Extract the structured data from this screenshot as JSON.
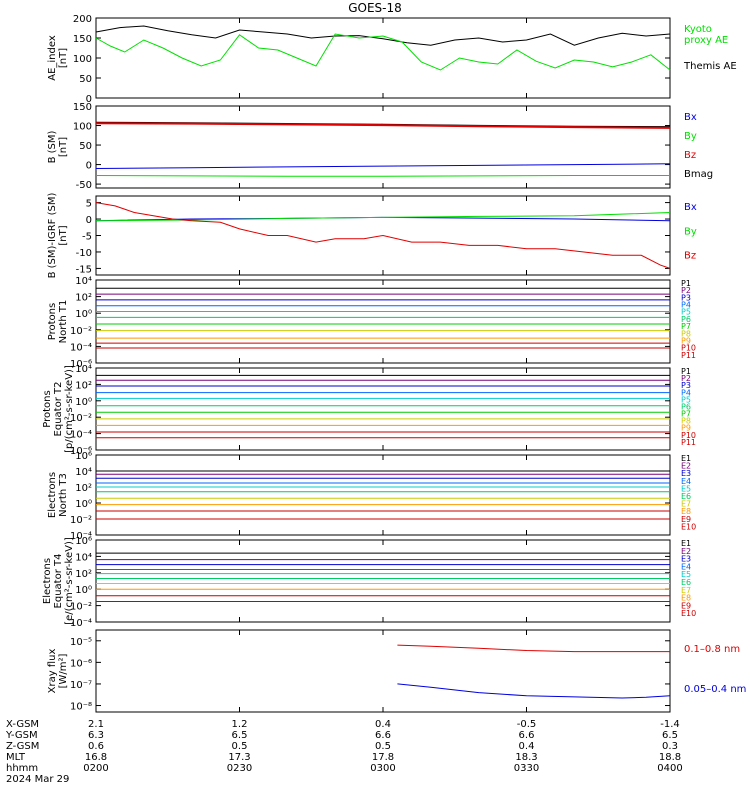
{
  "title": "GOES-18",
  "colors": {
    "black": "#000000",
    "blue": "#0000e0",
    "green": "#00e000",
    "red": "#e00000",
    "P": [
      "#000000",
      "#7a007a",
      "#0000cc",
      "#0066ff",
      "#00cccc",
      "#00cc66",
      "#00cc00",
      "#cccc00",
      "#ff9900",
      "#cc0000",
      "#cc0000",
      "#cc0000"
    ],
    "E": [
      "#000000",
      "#7a007a",
      "#0000cc",
      "#0066ff",
      "#00cccc",
      "#00cc66",
      "#cccc00",
      "#ff9900",
      "#cc0000",
      "#cc0000"
    ]
  },
  "chart_data": [
    {
      "type": "line",
      "ylabel": "AE_index\n[nT]",
      "ylim": [
        0,
        200
      ],
      "yticks": [
        "0",
        "50",
        "100",
        "150",
        "200"
      ],
      "log": false,
      "xlim": [
        0,
        120
      ],
      "legend": [
        {
          "label": "Kyoto\nproxy AE",
          "color": "#00e000"
        },
        {
          "label": "Themis AE",
          "color": "#000000"
        }
      ],
      "series": [
        {
          "name": "Themis AE",
          "color": "#000000",
          "x": [
            0,
            5,
            10,
            15,
            20,
            25,
            30,
            35,
            40,
            45,
            50,
            55,
            60,
            65,
            70,
            75,
            80,
            85,
            90,
            95,
            100,
            105,
            110,
            115,
            120
          ],
          "y": [
            165,
            176,
            180,
            168,
            158,
            150,
            170,
            165,
            160,
            150,
            155,
            156,
            148,
            138,
            132,
            145,
            150,
            140,
            145,
            160,
            132,
            150,
            162,
            155,
            160
          ]
        },
        {
          "name": "Kyoto proxy AE",
          "color": "#00e000",
          "x": [
            0,
            3,
            6,
            10,
            14,
            18,
            22,
            26,
            30,
            34,
            38,
            42,
            46,
            50,
            55,
            60,
            64,
            68,
            72,
            76,
            80,
            84,
            88,
            92,
            96,
            100,
            104,
            108,
            112,
            116,
            120
          ],
          "y": [
            150,
            130,
            115,
            145,
            125,
            100,
            80,
            95,
            158,
            125,
            120,
            100,
            80,
            160,
            150,
            155,
            140,
            90,
            70,
            100,
            90,
            85,
            120,
            92,
            75,
            95,
            90,
            78,
            90,
            108,
            70
          ]
        }
      ]
    },
    {
      "type": "line",
      "ylabel": "B (SM)\n[nT]",
      "ylim": [
        -60,
        150
      ],
      "yticks": [
        "-50",
        "0",
        "50",
        "100",
        "150"
      ],
      "log": false,
      "xlim": [
        0,
        120
      ],
      "legend": [
        {
          "label": "Bx",
          "color": "#0000e0"
        },
        {
          "label": "By",
          "color": "#00e000"
        },
        {
          "label": "Bz",
          "color": "#e00000"
        },
        {
          "label": "Bmag",
          "color": "#000000"
        }
      ],
      "series": [
        {
          "name": "Bmag",
          "color": "#000000",
          "x": [
            0,
            20,
            40,
            60,
            80,
            100,
            120
          ],
          "y": [
            107,
            106,
            104,
            102,
            99,
            97,
            96
          ]
        },
        {
          "name": "Bz",
          "color": "#e00000",
          "x": [
            0,
            20,
            40,
            60,
            80,
            100,
            120
          ],
          "y": [
            106,
            105,
            103,
            101,
            98,
            96,
            94
          ]
        },
        {
          "name": "Bx",
          "color": "#0000e0",
          "x": [
            0,
            20,
            40,
            60,
            80,
            100,
            120
          ],
          "y": [
            -10,
            -8,
            -6,
            -4,
            -2,
            0,
            2
          ]
        },
        {
          "name": "By",
          "color": "#00e000",
          "x": [
            0,
            20,
            40,
            60,
            80,
            100,
            120
          ],
          "y": [
            -28,
            -29,
            -30,
            -30,
            -29,
            -28,
            -28
          ]
        }
      ]
    },
    {
      "type": "line",
      "ylabel": "B (SM)-IGRF (SM)\n[nT]",
      "ylim": [
        -17,
        7
      ],
      "yticks": [
        "-15",
        "-10",
        "-5",
        "0",
        "5"
      ],
      "log": false,
      "xlim": [
        0,
        120
      ],
      "legend": [
        {
          "label": "Bx",
          "color": "#0000e0"
        },
        {
          "label": "By",
          "color": "#00e000"
        },
        {
          "label": "Bz",
          "color": "#e00000"
        }
      ],
      "series": [
        {
          "name": "Bx",
          "color": "#0000e0",
          "x": [
            0,
            20,
            40,
            60,
            80,
            100,
            120
          ],
          "y": [
            -0.5,
            0,
            0.2,
            0.5,
            0.3,
            0,
            -0.5
          ]
        },
        {
          "name": "By",
          "color": "#00e000",
          "x": [
            0,
            20,
            40,
            60,
            80,
            100,
            120
          ],
          "y": [
            -0.5,
            -0.3,
            0.2,
            0.5,
            0.8,
            1.0,
            2.0
          ]
        },
        {
          "name": "Bz",
          "color": "#e00000",
          "x": [
            0,
            4,
            8,
            12,
            16,
            20,
            26,
            30,
            36,
            40,
            46,
            50,
            56,
            60,
            66,
            72,
            78,
            84,
            90,
            96,
            102,
            108,
            114,
            118,
            120
          ],
          "y": [
            5,
            4,
            2,
            1,
            0,
            -0.5,
            -1,
            -3,
            -5,
            -5,
            -7,
            -6,
            -6,
            -5,
            -7,
            -7,
            -8,
            -8,
            -9,
            -9,
            -10,
            -11,
            -11,
            -14,
            -15
          ]
        }
      ]
    },
    {
      "type": "line",
      "ylabel": "Protons\nNorth T1",
      "ylim": [
        -6,
        4
      ],
      "yticks": [
        "10⁻⁶",
        "10⁻⁴",
        "10⁻²",
        "10⁰",
        "10²",
        "10⁴"
      ],
      "log": true,
      "xlim": [
        0,
        120
      ],
      "legend_labels": [
        "P1",
        "P2",
        "P3",
        "P4",
        "P5",
        "P6",
        "P7",
        "P8",
        "P9",
        "P10",
        "P11"
      ],
      "series_log10": [
        3.0,
        2.3,
        1.6,
        0.9,
        0.2,
        -0.5,
        -1.3,
        -2.1,
        -3.0,
        -3.6,
        -4.2
      ]
    },
    {
      "type": "line",
      "ylabel": "Protons\nEquator T2\n[p/(cm²-s-sr-keV)]",
      "ylim": [
        -6,
        4
      ],
      "yticks": [
        "10⁻⁶",
        "10⁻⁴",
        "10⁻²",
        "10⁰",
        "10²",
        "10⁴"
      ],
      "log": true,
      "xlim": [
        0,
        120
      ],
      "legend_labels": [
        "P1",
        "P2",
        "P3",
        "P4",
        "P5",
        "P6",
        "P7",
        "P8",
        "P9",
        "P10",
        "P11"
      ],
      "series_log10": [
        3.1,
        2.5,
        1.8,
        1.0,
        0.3,
        -0.6,
        -1.4,
        -2.2,
        -3.0,
        -3.8,
        -4.5
      ]
    },
    {
      "type": "line",
      "ylabel": "Electrons\nNorth T3",
      "ylim": [
        -4,
        6
      ],
      "yticks": [
        "10⁻⁴",
        "10⁻²",
        "10⁰",
        "10²",
        "10⁴",
        "10⁶"
      ],
      "log": true,
      "xlim": [
        0,
        120
      ],
      "legend_labels": [
        "E1",
        "E2",
        "E3",
        "E4",
        "E5",
        "E6",
        "E7",
        "E8",
        "E9",
        "E10"
      ],
      "series_log10": [
        4.0,
        3.6,
        3.1,
        2.5,
        2.0,
        1.4,
        0.6,
        -0.2,
        -1.0,
        -2.0
      ]
    },
    {
      "type": "line",
      "ylabel": "Electrons\nEquator T4\n[e/(cm²-s-sr-keV)]",
      "ylim": [
        -4,
        6
      ],
      "yticks": [
        "10⁻⁴",
        "10⁻²",
        "10⁰",
        "10²",
        "10⁴",
        "10⁶"
      ],
      "log": true,
      "xlim": [
        0,
        120
      ],
      "legend_labels": [
        "E1",
        "E2",
        "E3",
        "E4",
        "E5",
        "E6",
        "E7",
        "E8",
        "E9",
        "E10"
      ],
      "series_log10": [
        4.4,
        3.6,
        3.0,
        2.4,
        1.9,
        1.3,
        0.7,
        0.0,
        -0.8,
        -1.5
      ]
    },
    {
      "type": "line",
      "ylabel": "Xray flux\n[W/m²]",
      "ylim": [
        -8.3,
        -4.5
      ],
      "yticks": [
        "10⁻⁸",
        "10⁻⁷",
        "10⁻⁶",
        "10⁻⁵"
      ],
      "log": true,
      "xlim": [
        0,
        120
      ],
      "legend": [
        {
          "label": "0.1–0.8 nm",
          "color": "#e00000"
        },
        {
          "label": "0.05–0.4 nm",
          "color": "#0000e0"
        }
      ],
      "series": [
        {
          "name": "0.1–0.8 nm",
          "color": "#e00000",
          "x": [
            63,
            70,
            80,
            90,
            100,
            110,
            120
          ],
          "y": [
            -5.2,
            -5.25,
            -5.35,
            -5.45,
            -5.5,
            -5.5,
            -5.5
          ]
        },
        {
          "name": "0.05–0.4 nm",
          "color": "#0000e0",
          "x": [
            63,
            70,
            80,
            90,
            100,
            110,
            115,
            120
          ],
          "y": [
            -7.0,
            -7.15,
            -7.4,
            -7.55,
            -7.6,
            -7.65,
            -7.62,
            -7.55
          ]
        }
      ]
    }
  ],
  "ephemeris": {
    "labels": [
      "X-GSM",
      "Y-GSM",
      "Z-GSM",
      "MLT",
      "hhmm",
      "2024 Mar 29"
    ],
    "columns": [
      {
        "vals": [
          "2.1",
          "6.3",
          "0.6",
          "16.8",
          "0200"
        ]
      },
      {
        "vals": [
          "1.2",
          "6.5",
          "0.5",
          "17.3",
          "0230"
        ]
      },
      {
        "vals": [
          "0.4",
          "6.6",
          "0.5",
          "17.8",
          "0300"
        ]
      },
      {
        "vals": [
          "-0.5",
          "6.6",
          "0.4",
          "18.3",
          "0330"
        ]
      },
      {
        "vals": [
          "-1.4",
          "6.5",
          "0.3",
          "18.8",
          "0400"
        ]
      }
    ]
  }
}
